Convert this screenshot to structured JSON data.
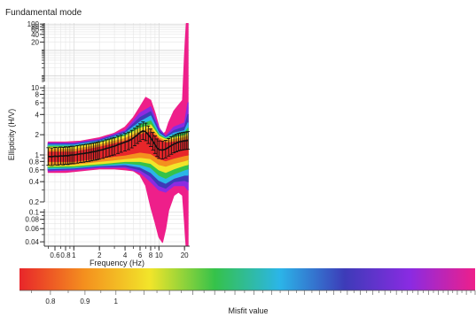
{
  "chart_data": {
    "type": "line",
    "title": "Fundamental mode",
    "xlabel": "Frequency (Hz)",
    "ylabel": "Ellipticity (H/V)",
    "x_scale": "log",
    "y_scale": "log",
    "xlim": [
      0.45,
      23
    ],
    "grid": true,
    "y_panels": [
      {
        "range": [
          0.6,
          110
        ],
        "ticks": [
          {
            "v": 100,
            "label": "100"
          },
          {
            "v": 80,
            "label": "80"
          },
          {
            "v": 60,
            "label": "60"
          },
          {
            "v": 40,
            "label": "40"
          },
          {
            "v": 20,
            "label": "20"
          }
        ]
      },
      {
        "range": [
          0.2,
          11
        ],
        "ticks": [
          {
            "v": 10,
            "label": "10"
          },
          {
            "v": 8,
            "label": "8"
          },
          {
            "v": 6,
            "label": "6"
          },
          {
            "v": 4,
            "label": "4"
          },
          {
            "v": 2,
            "label": "2"
          },
          {
            "v": 1,
            "label": "1"
          },
          {
            "v": 0.8,
            "label": "0.8"
          },
          {
            "v": 0.6,
            "label": "0.6"
          },
          {
            "v": 0.4,
            "label": "0.4"
          },
          {
            "v": 0.2,
            "label": "0.2"
          }
        ]
      },
      {
        "range": [
          0.035,
          0.11
        ],
        "ticks": [
          {
            "v": 0.1,
            "label": "0.1"
          },
          {
            "v": 0.08,
            "label": "0.08"
          },
          {
            "v": 0.06,
            "label": "0.06"
          },
          {
            "v": 0.04,
            "label": "0.04"
          }
        ]
      }
    ],
    "x_ticks": [
      {
        "v": 0.6,
        "label": "0.6"
      },
      {
        "v": 0.8,
        "label": "0.8"
      },
      {
        "v": 1,
        "label": "1"
      },
      {
        "v": 2,
        "label": "2"
      },
      {
        "v": 4,
        "label": "4"
      },
      {
        "v": 6,
        "label": "6"
      },
      {
        "v": 8,
        "label": "8"
      },
      {
        "v": 10,
        "label": "10"
      },
      {
        "v": 20,
        "label": "20"
      }
    ],
    "series": [
      {
        "color": "#ee1f8a",
        "x": [
          0.5,
          0.8,
          1.2,
          2,
          3,
          4,
          5,
          6,
          7,
          8,
          9,
          10,
          11,
          12,
          13,
          15,
          17,
          19,
          20,
          21,
          22
        ],
        "upper": [
          1.55,
          1.55,
          1.6,
          1.8,
          2.1,
          2.6,
          3.6,
          5.2,
          7.2,
          6.5,
          4.2,
          2.6,
          2.0,
          2.2,
          3.0,
          4.5,
          5.5,
          6.5,
          30,
          90,
          105
        ],
        "lower": [
          0.55,
          0.55,
          0.58,
          0.62,
          0.62,
          0.6,
          0.58,
          0.5,
          0.35,
          0.17,
          0.1,
          0.06,
          0.05,
          0.08,
          0.15,
          0.25,
          0.28,
          0.25,
          0.1,
          0.04,
          0.04
        ]
      },
      {
        "color": "#8a2be2",
        "x": [
          0.5,
          1,
          2,
          4,
          6,
          8,
          10,
          12,
          15,
          20,
          22
        ],
        "upper": [
          1.5,
          1.5,
          1.7,
          2.3,
          4.2,
          5.2,
          2.5,
          1.9,
          2.6,
          3.0,
          6.0
        ],
        "lower": [
          0.58,
          0.6,
          0.65,
          0.65,
          0.55,
          0.4,
          0.3,
          0.28,
          0.35,
          0.35,
          0.3
        ]
      },
      {
        "color": "#3d3bb8",
        "x": [
          0.5,
          1,
          2,
          4,
          6,
          8,
          10,
          12,
          15,
          20,
          22
        ],
        "upper": [
          1.45,
          1.45,
          1.65,
          2.2,
          3.6,
          4.4,
          2.3,
          1.85,
          2.3,
          2.6,
          4.0
        ],
        "lower": [
          0.6,
          0.62,
          0.67,
          0.68,
          0.6,
          0.48,
          0.35,
          0.32,
          0.4,
          0.42,
          0.4
        ]
      },
      {
        "color": "#2bb5e8",
        "x": [
          0.5,
          1,
          2,
          4,
          6,
          8,
          10,
          12,
          15,
          20,
          22
        ],
        "upper": [
          1.4,
          1.4,
          1.6,
          2.1,
          3.1,
          3.8,
          2.1,
          1.8,
          2.1,
          2.3,
          3.0
        ],
        "lower": [
          0.62,
          0.64,
          0.69,
          0.72,
          0.66,
          0.55,
          0.42,
          0.38,
          0.45,
          0.5,
          0.5
        ]
      },
      {
        "color": "#35c24a",
        "x": [
          0.5,
          1,
          2,
          4,
          6,
          8,
          10,
          12,
          15,
          20,
          22
        ],
        "upper": [
          1.35,
          1.35,
          1.55,
          2.0,
          2.8,
          3.2,
          2.0,
          1.75,
          1.95,
          2.1,
          2.5
        ],
        "lower": [
          0.65,
          0.66,
          0.71,
          0.76,
          0.72,
          0.65,
          0.5,
          0.45,
          0.52,
          0.6,
          0.62
        ]
      },
      {
        "color": "#f2e52a",
        "x": [
          0.5,
          1,
          2,
          4,
          6,
          8,
          10,
          12,
          15,
          20,
          22
        ],
        "upper": [
          1.3,
          1.3,
          1.5,
          1.9,
          2.5,
          2.8,
          1.9,
          1.7,
          1.8,
          1.95,
          2.1
        ],
        "lower": [
          0.68,
          0.69,
          0.74,
          0.8,
          0.8,
          0.75,
          0.6,
          0.55,
          0.62,
          0.7,
          0.72
        ]
      },
      {
        "color": "#f4901e",
        "x": [
          0.5,
          1,
          2,
          4,
          6,
          8,
          10,
          12,
          15,
          20,
          22
        ],
        "upper": [
          1.2,
          1.2,
          1.4,
          1.75,
          2.2,
          2.5,
          1.8,
          1.6,
          1.7,
          1.8,
          1.9
        ],
        "lower": [
          0.72,
          0.73,
          0.8,
          0.88,
          0.92,
          0.88,
          0.72,
          0.68,
          0.75,
          0.82,
          0.85
        ]
      },
      {
        "color": "#e8262a",
        "x": [
          0.5,
          1,
          2,
          4,
          6,
          8,
          10,
          12,
          15,
          20,
          22
        ],
        "upper": [
          1.1,
          1.1,
          1.3,
          1.6,
          2.0,
          2.2,
          1.7,
          1.5,
          1.55,
          1.65,
          1.7
        ],
        "lower": [
          0.8,
          0.8,
          0.9,
          1.0,
          1.1,
          1.05,
          0.88,
          0.82,
          0.9,
          0.98,
          1.0
        ]
      }
    ],
    "observed": {
      "x": [
        0.5,
        0.55,
        0.6,
        0.65,
        0.7,
        0.75,
        0.8,
        0.85,
        0.9,
        0.95,
        1.0,
        1.1,
        1.2,
        1.3,
        1.4,
        1.5,
        1.6,
        1.7,
        1.8,
        1.9,
        2.0,
        2.2,
        2.4,
        2.6,
        2.8,
        3.0,
        3.3,
        3.6,
        4.0,
        4.4,
        4.8,
        5.2,
        5.6,
        6.0,
        6.5,
        7.0,
        7.5,
        8.0,
        8.5,
        9.0,
        9.5,
        10,
        11,
        12,
        13,
        14,
        15,
        16,
        17,
        18,
        19,
        20,
        21,
        22
      ],
      "y": [
        0.95,
        0.94,
        0.96,
        0.95,
        0.97,
        0.96,
        0.98,
        0.97,
        0.99,
        1.0,
        1.0,
        1.02,
        1.04,
        1.05,
        1.07,
        1.08,
        1.1,
        1.12,
        1.13,
        1.15,
        1.17,
        1.2,
        1.25,
        1.28,
        1.32,
        1.35,
        1.42,
        1.48,
        1.55,
        1.62,
        1.72,
        1.85,
        2.0,
        2.15,
        2.3,
        2.2,
        2.0,
        1.8,
        1.6,
        1.42,
        1.28,
        1.2,
        1.18,
        1.22,
        1.3,
        1.38,
        1.45,
        1.5,
        1.55,
        1.58,
        1.6,
        1.62,
        1.63,
        1.65
      ],
      "err": 1.35,
      "color": "#111111"
    },
    "colorbar": {
      "label": "Misfit value",
      "scale": "log",
      "range": [
        0.72,
        3.4
      ],
      "ticks": [
        {
          "v": 0.8,
          "label": "0.8"
        },
        {
          "v": 0.9,
          "label": "0.9"
        },
        {
          "v": 1,
          "label": "1"
        }
      ],
      "colors": [
        "#e8262a",
        "#f4901e",
        "#f2e52a",
        "#35c24a",
        "#2bb5e8",
        "#3d3bb8",
        "#8a2be2",
        "#ee1f8a"
      ]
    }
  }
}
